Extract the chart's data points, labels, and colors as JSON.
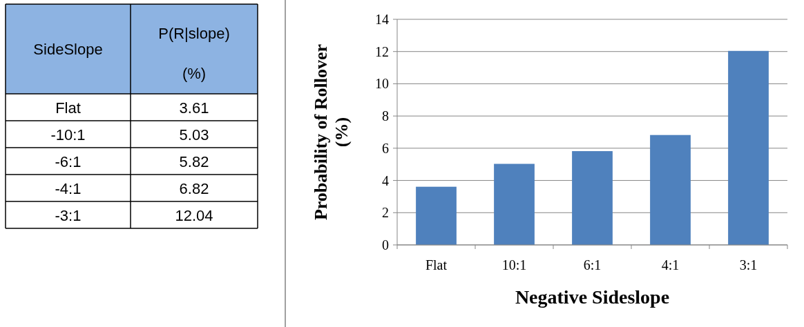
{
  "chart_data": [
    {
      "type": "other",
      "annotations": [
        "SideSlope",
        "P(R|slope) (%)"
      ],
      "categories": [
        "Flat",
        "-10:1",
        "-6:1",
        "-4:1",
        "-3:1"
      ],
      "values": [
        3.61,
        5.03,
        5.82,
        6.82,
        12.04
      ],
      "data_labels": true,
      "color": "#8db3e2"
    },
    {
      "type": "bar",
      "xlabel": "Negative Sideslope",
      "ylabel": "Probability of Rollover (%)",
      "categories": [
        "Flat",
        "10:1",
        "6:1",
        "4:1",
        "3:1"
      ],
      "values": [
        3.61,
        5.03,
        5.82,
        6.82,
        12.04
      ],
      "color": "#4f81bd",
      "ylim": [
        0,
        14
      ],
      "yticks": [
        0,
        2,
        4,
        6,
        8,
        10,
        12,
        14
      ],
      "grid": "y"
    }
  ]
}
